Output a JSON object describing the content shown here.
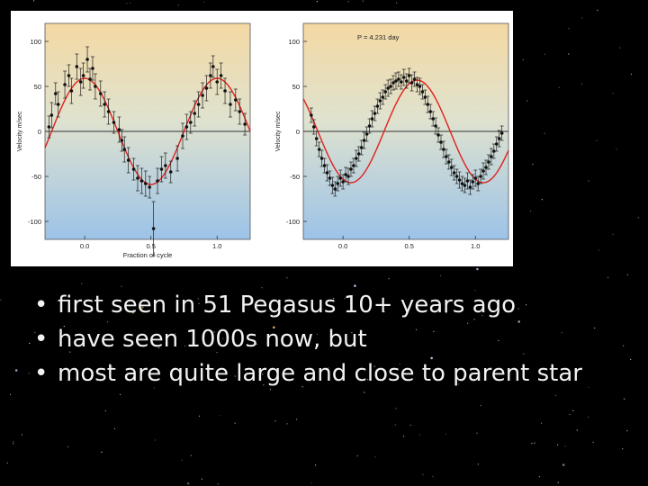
{
  "slide": {
    "bullet_glyph": "•",
    "bullets": [
      "first seen in 51 Pegasus 10+ years ago",
      "have seen 1000s now, but",
      "most are quite large and close to parent star"
    ]
  },
  "colors": {
    "background": "#000000",
    "model_curve": "#e0201c",
    "points": "#111111",
    "text": "#f2f2f2"
  },
  "chart_data": [
    {
      "type": "scatter",
      "title": "",
      "xlabel": "Fraction of cycle",
      "ylabel": "Velocity m/sec",
      "xlim": [
        -0.3,
        1.25
      ],
      "ylim": [
        -120,
        120
      ],
      "x_ticks": [
        "0.0",
        "0.5",
        "1.0"
      ],
      "y_ticks": [
        "100",
        "50",
        "0",
        "-50",
        "-100"
      ],
      "zero_line": true,
      "model": {
        "amplitude": 59,
        "phase_of_max": 0.0
      },
      "points": [
        {
          "x": -0.27,
          "y": 5,
          "err": 12
        },
        {
          "x": -0.25,
          "y": 18,
          "err": 14
        },
        {
          "x": -0.22,
          "y": 42,
          "err": 12
        },
        {
          "x": -0.2,
          "y": 30,
          "err": 14
        },
        {
          "x": -0.15,
          "y": 52,
          "err": 15
        },
        {
          "x": -0.12,
          "y": 62,
          "err": 12
        },
        {
          "x": -0.1,
          "y": 45,
          "err": 14
        },
        {
          "x": -0.06,
          "y": 72,
          "err": 14
        },
        {
          "x": -0.03,
          "y": 55,
          "err": 15
        },
        {
          "x": -0.01,
          "y": 62,
          "err": 14
        },
        {
          "x": 0.02,
          "y": 80,
          "err": 14
        },
        {
          "x": 0.04,
          "y": 58,
          "err": 12
        },
        {
          "x": 0.06,
          "y": 70,
          "err": 13
        },
        {
          "x": 0.08,
          "y": 50,
          "err": 14
        },
        {
          "x": 0.12,
          "y": 42,
          "err": 14
        },
        {
          "x": 0.15,
          "y": 30,
          "err": 14
        },
        {
          "x": 0.18,
          "y": 22,
          "err": 14
        },
        {
          "x": 0.22,
          "y": 10,
          "err": 12
        },
        {
          "x": 0.26,
          "y": 2,
          "err": 14
        },
        {
          "x": 0.28,
          "y": -10,
          "err": 12
        },
        {
          "x": 0.3,
          "y": -20,
          "err": 14
        },
        {
          "x": 0.33,
          "y": -32,
          "err": 14
        },
        {
          "x": 0.37,
          "y": -42,
          "err": 12
        },
        {
          "x": 0.4,
          "y": -52,
          "err": 14
        },
        {
          "x": 0.43,
          "y": -55,
          "err": 14
        },
        {
          "x": 0.46,
          "y": -58,
          "err": 14
        },
        {
          "x": 0.49,
          "y": -62,
          "err": 12
        },
        {
          "x": 0.52,
          "y": -108,
          "err": 30
        },
        {
          "x": 0.55,
          "y": -55,
          "err": 14
        },
        {
          "x": 0.58,
          "y": -42,
          "err": 14
        },
        {
          "x": 0.61,
          "y": -38,
          "err": 14
        },
        {
          "x": 0.65,
          "y": -45,
          "err": 12
        },
        {
          "x": 0.7,
          "y": -30,
          "err": 14
        },
        {
          "x": 0.74,
          "y": -5,
          "err": 14
        },
        {
          "x": 0.77,
          "y": 5,
          "err": 14
        },
        {
          "x": 0.8,
          "y": 10,
          "err": 12
        },
        {
          "x": 0.83,
          "y": 20,
          "err": 14
        },
        {
          "x": 0.86,
          "y": 30,
          "err": 14
        },
        {
          "x": 0.89,
          "y": 40,
          "err": 14
        },
        {
          "x": 0.92,
          "y": 48,
          "err": 14
        },
        {
          "x": 0.95,
          "y": 62,
          "err": 14
        },
        {
          "x": 0.97,
          "y": 72,
          "err": 12
        },
        {
          "x": 1.0,
          "y": 55,
          "err": 14
        },
        {
          "x": 1.03,
          "y": 62,
          "err": 14
        },
        {
          "x": 1.06,
          "y": 45,
          "err": 14
        },
        {
          "x": 1.1,
          "y": 30,
          "err": 14
        },
        {
          "x": 1.14,
          "y": 35,
          "err": 12
        },
        {
          "x": 1.17,
          "y": 22,
          "err": 14
        },
        {
          "x": 1.21,
          "y": 8,
          "err": 12
        }
      ]
    },
    {
      "type": "scatter",
      "title": "P = 4.231 day",
      "xlabel": "",
      "ylabel": "Velocity m/sec",
      "xlim": [
        -0.3,
        1.25
      ],
      "ylim": [
        -120,
        120
      ],
      "x_ticks": [
        "0.0",
        "0.5",
        "1.0"
      ],
      "y_ticks": [
        "100",
        "50",
        "0",
        "-50",
        "-100"
      ],
      "zero_line": true,
      "model": {
        "amplitude": 57,
        "phase_of_max": 0.56
      },
      "points": [
        {
          "x": -0.24,
          "y": 18,
          "err": 8
        },
        {
          "x": -0.22,
          "y": 5,
          "err": 8
        },
        {
          "x": -0.2,
          "y": -8,
          "err": 8
        },
        {
          "x": -0.18,
          "y": -20,
          "err": 8
        },
        {
          "x": -0.16,
          "y": -30,
          "err": 9
        },
        {
          "x": -0.14,
          "y": -38,
          "err": 8
        },
        {
          "x": -0.12,
          "y": -46,
          "err": 9
        },
        {
          "x": -0.1,
          "y": -52,
          "err": 8
        },
        {
          "x": -0.08,
          "y": -60,
          "err": 9
        },
        {
          "x": -0.06,
          "y": -64,
          "err": 8
        },
        {
          "x": -0.04,
          "y": -58,
          "err": 8
        },
        {
          "x": -0.02,
          "y": -52,
          "err": 9
        },
        {
          "x": 0.0,
          "y": -56,
          "err": 8
        },
        {
          "x": 0.02,
          "y": -48,
          "err": 8
        },
        {
          "x": 0.04,
          "y": -50,
          "err": 9
        },
        {
          "x": 0.06,
          "y": -42,
          "err": 8
        },
        {
          "x": 0.08,
          "y": -38,
          "err": 8
        },
        {
          "x": 0.1,
          "y": -30,
          "err": 9
        },
        {
          "x": 0.12,
          "y": -25,
          "err": 8
        },
        {
          "x": 0.14,
          "y": -18,
          "err": 8
        },
        {
          "x": 0.16,
          "y": -10,
          "err": 9
        },
        {
          "x": 0.18,
          "y": -3,
          "err": 8
        },
        {
          "x": 0.2,
          "y": 6,
          "err": 8
        },
        {
          "x": 0.22,
          "y": 14,
          "err": 9
        },
        {
          "x": 0.24,
          "y": 20,
          "err": 8
        },
        {
          "x": 0.26,
          "y": 28,
          "err": 8
        },
        {
          "x": 0.28,
          "y": 34,
          "err": 9
        },
        {
          "x": 0.3,
          "y": 38,
          "err": 8
        },
        {
          "x": 0.32,
          "y": 44,
          "err": 8
        },
        {
          "x": 0.34,
          "y": 48,
          "err": 9
        },
        {
          "x": 0.36,
          "y": 50,
          "err": 8
        },
        {
          "x": 0.38,
          "y": 54,
          "err": 8
        },
        {
          "x": 0.4,
          "y": 56,
          "err": 9
        },
        {
          "x": 0.42,
          "y": 58,
          "err": 8
        },
        {
          "x": 0.44,
          "y": 55,
          "err": 8
        },
        {
          "x": 0.46,
          "y": 60,
          "err": 9
        },
        {
          "x": 0.48,
          "y": 56,
          "err": 8
        },
        {
          "x": 0.5,
          "y": 62,
          "err": 8
        },
        {
          "x": 0.52,
          "y": 54,
          "err": 9
        },
        {
          "x": 0.54,
          "y": 58,
          "err": 8
        },
        {
          "x": 0.56,
          "y": 52,
          "err": 8
        },
        {
          "x": 0.58,
          "y": 50,
          "err": 9
        },
        {
          "x": 0.6,
          "y": 44,
          "err": 8
        },
        {
          "x": 0.62,
          "y": 38,
          "err": 8
        },
        {
          "x": 0.64,
          "y": 30,
          "err": 9
        },
        {
          "x": 0.66,
          "y": 22,
          "err": 8
        },
        {
          "x": 0.68,
          "y": 14,
          "err": 8
        },
        {
          "x": 0.7,
          "y": 6,
          "err": 9
        },
        {
          "x": 0.72,
          "y": -4,
          "err": 8
        },
        {
          "x": 0.74,
          "y": -12,
          "err": 8
        },
        {
          "x": 0.76,
          "y": -20,
          "err": 9
        },
        {
          "x": 0.78,
          "y": -28,
          "err": 8
        },
        {
          "x": 0.8,
          "y": -34,
          "err": 8
        },
        {
          "x": 0.82,
          "y": -40,
          "err": 9
        },
        {
          "x": 0.84,
          "y": -46,
          "err": 8
        },
        {
          "x": 0.86,
          "y": -50,
          "err": 8
        },
        {
          "x": 0.88,
          "y": -54,
          "err": 9
        },
        {
          "x": 0.9,
          "y": -58,
          "err": 8
        },
        {
          "x": 0.92,
          "y": -60,
          "err": 8
        },
        {
          "x": 0.94,
          "y": -55,
          "err": 9
        },
        {
          "x": 0.96,
          "y": -62,
          "err": 8
        },
        {
          "x": 0.98,
          "y": -56,
          "err": 8
        },
        {
          "x": 1.0,
          "y": -52,
          "err": 9
        },
        {
          "x": 1.02,
          "y": -58,
          "err": 8
        },
        {
          "x": 1.04,
          "y": -50,
          "err": 8
        },
        {
          "x": 1.06,
          "y": -44,
          "err": 9
        },
        {
          "x": 1.08,
          "y": -40,
          "err": 8
        },
        {
          "x": 1.1,
          "y": -34,
          "err": 8
        },
        {
          "x": 1.12,
          "y": -28,
          "err": 9
        },
        {
          "x": 1.14,
          "y": -22,
          "err": 8
        },
        {
          "x": 1.16,
          "y": -14,
          "err": 8
        },
        {
          "x": 1.18,
          "y": -8,
          "err": 9
        },
        {
          "x": 1.2,
          "y": -2,
          "err": 8
        }
      ]
    }
  ]
}
